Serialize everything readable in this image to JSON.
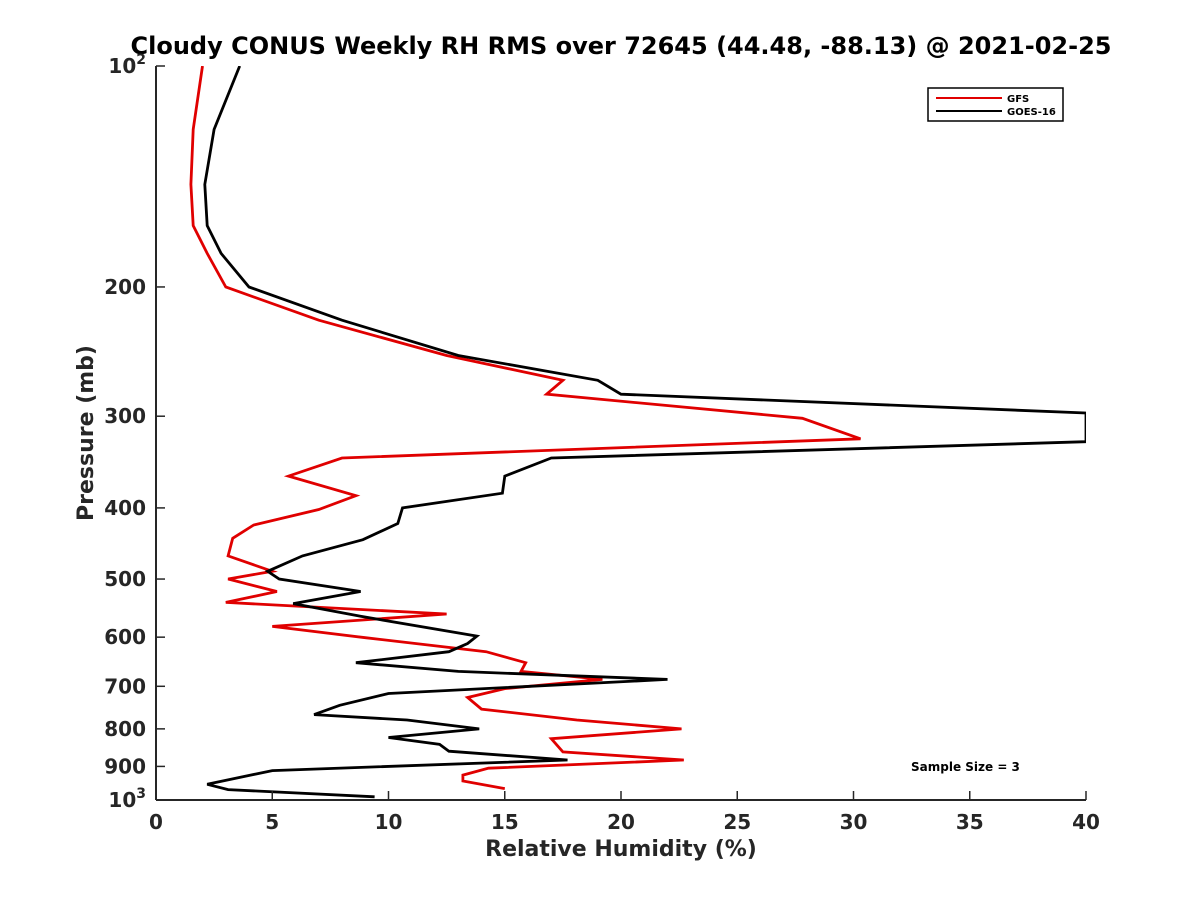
{
  "chart_data": {
    "type": "line",
    "title": "Cloudy CONUS Weekly RH RMS over 72645 (44.48, -88.13) @ 2021-02-25",
    "xlabel": "Relative Humidity (%)",
    "ylabel": "Pressure (mb)",
    "xlim": [
      0,
      40
    ],
    "ylim": [
      100,
      1000
    ],
    "y_scale": "log",
    "y_reversed": true,
    "grid": false,
    "legend_position": "top-right",
    "x_ticks": [
      {
        "value": 0,
        "label": "0"
      },
      {
        "value": 5,
        "label": "5"
      },
      {
        "value": 10,
        "label": "10"
      },
      {
        "value": 15,
        "label": "15"
      },
      {
        "value": 20,
        "label": "20"
      },
      {
        "value": 25,
        "label": "25"
      },
      {
        "value": 30,
        "label": "30"
      },
      {
        "value": 35,
        "label": "35"
      },
      {
        "value": 40,
        "label": "40"
      }
    ],
    "y_ticks": [
      {
        "value": 100,
        "base": "10",
        "exp": "2"
      },
      {
        "value": 200,
        "base": "200",
        "exp": ""
      },
      {
        "value": 300,
        "base": "300",
        "exp": ""
      },
      {
        "value": 400,
        "base": "400",
        "exp": ""
      },
      {
        "value": 500,
        "base": "500",
        "exp": ""
      },
      {
        "value": 600,
        "base": "600",
        "exp": ""
      },
      {
        "value": 700,
        "base": "700",
        "exp": ""
      },
      {
        "value": 800,
        "base": "800",
        "exp": ""
      },
      {
        "value": 900,
        "base": "900",
        "exp": ""
      },
      {
        "value": 1000,
        "base": "10",
        "exp": "3"
      }
    ],
    "series": [
      {
        "name": "GFS",
        "color": "#e00000",
        "points": [
          [
            2.0,
            100
          ],
          [
            1.6,
            122
          ],
          [
            1.5,
            145
          ],
          [
            1.6,
            165
          ],
          [
            2.2,
            180
          ],
          [
            3.0,
            200
          ],
          [
            7.0,
            222
          ],
          [
            12.5,
            248
          ],
          [
            17.5,
            268
          ],
          [
            16.8,
            280
          ],
          [
            27.8,
            302
          ],
          [
            30.3,
            322
          ],
          [
            8.0,
            342
          ],
          [
            5.7,
            362
          ],
          [
            8.6,
            385
          ],
          [
            7.0,
            402
          ],
          [
            4.2,
            422
          ],
          [
            3.3,
            440
          ],
          [
            3.1,
            465
          ],
          [
            5.0,
            488
          ],
          [
            3.1,
            500
          ],
          [
            5.2,
            520
          ],
          [
            3.0,
            538
          ],
          [
            12.5,
            558
          ],
          [
            5.0,
            580
          ],
          [
            9.0,
            601
          ],
          [
            14.2,
            628
          ],
          [
            15.9,
            650
          ],
          [
            15.7,
            668
          ],
          [
            19.2,
            685
          ],
          [
            15.0,
            705
          ],
          [
            13.4,
            725
          ],
          [
            14.0,
            752
          ],
          [
            18.1,
            778
          ],
          [
            22.6,
            800
          ],
          [
            17.0,
            825
          ],
          [
            17.5,
            860
          ],
          [
            22.7,
            882
          ],
          [
            14.3,
            905
          ],
          [
            13.2,
            925
          ],
          [
            13.2,
            942
          ],
          [
            15.0,
            965
          ]
        ]
      },
      {
        "name": "GOES-16",
        "color": "#000000",
        "points": [
          [
            3.6,
            100
          ],
          [
            2.5,
            122
          ],
          [
            2.1,
            145
          ],
          [
            2.2,
            165
          ],
          [
            2.8,
            180
          ],
          [
            4.0,
            200
          ],
          [
            8.0,
            222
          ],
          [
            13.0,
            248
          ],
          [
            19.0,
            268
          ],
          [
            20.0,
            280
          ],
          [
            40.0,
            297
          ],
          [
            40.0,
            325
          ],
          [
            17.0,
            342
          ],
          [
            15.0,
            362
          ],
          [
            14.9,
            382
          ],
          [
            10.6,
            400
          ],
          [
            10.4,
            420
          ],
          [
            8.9,
            442
          ],
          [
            6.3,
            465
          ],
          [
            4.8,
            488
          ],
          [
            5.3,
            500
          ],
          [
            8.8,
            520
          ],
          [
            5.9,
            540
          ],
          [
            8.8,
            562
          ],
          [
            13.8,
            598
          ],
          [
            13.4,
            612
          ],
          [
            12.6,
            628
          ],
          [
            8.6,
            650
          ],
          [
            13.0,
            668
          ],
          [
            22.0,
            685
          ],
          [
            10.0,
            716
          ],
          [
            7.9,
            743
          ],
          [
            6.8,
            765
          ],
          [
            10.8,
            778
          ],
          [
            13.9,
            800
          ],
          [
            10.0,
            822
          ],
          [
            12.2,
            840
          ],
          [
            12.6,
            858
          ],
          [
            17.7,
            882
          ],
          [
            5.0,
            912
          ],
          [
            2.2,
            952
          ],
          [
            3.1,
            968
          ],
          [
            9.4,
            990
          ]
        ]
      }
    ],
    "annotation": "Sample Size = 3"
  }
}
